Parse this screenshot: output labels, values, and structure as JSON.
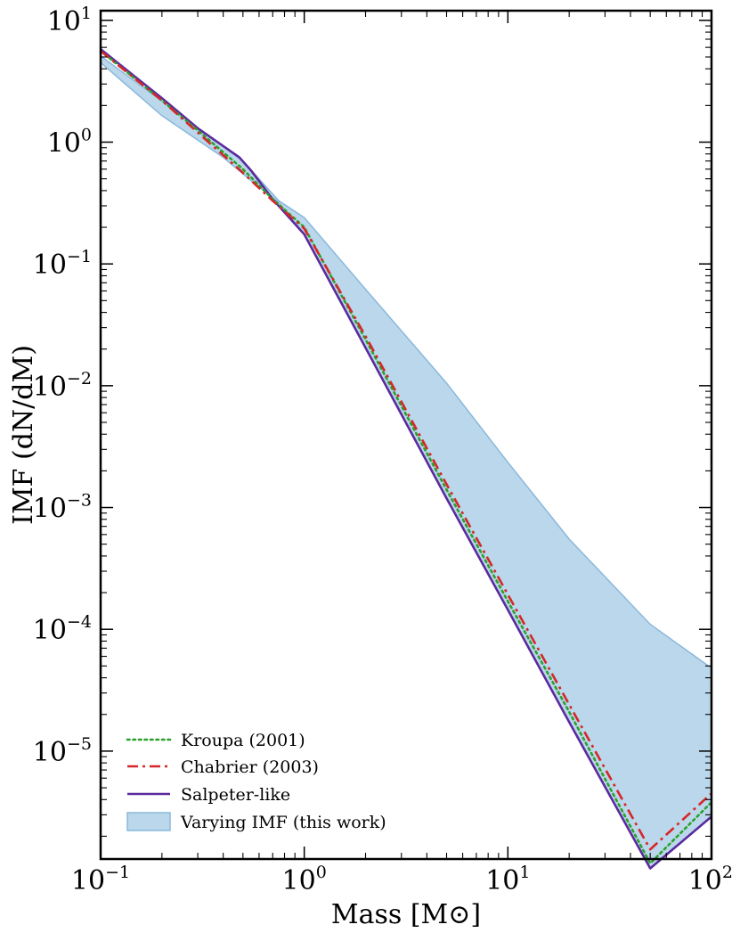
{
  "chart_data": {
    "type": "line",
    "xlabel": "Mass [M⊙]",
    "ylabel": "IMF (dN/dM)",
    "xscale": "log",
    "yscale": "log",
    "xlim": [
      0.1,
      100
    ],
    "ylim": [
      1.3e-06,
      12
    ],
    "x_ticks": [
      {
        "base": "10",
        "exp": "−1"
      },
      {
        "base": "10",
        "exp": "0"
      },
      {
        "base": "10",
        "exp": "1"
      },
      {
        "base": "10",
        "exp": "2"
      }
    ],
    "y_ticks": [
      {
        "base": "10",
        "exp": "1"
      },
      {
        "base": "10",
        "exp": "0"
      },
      {
        "base": "10",
        "exp": "−1"
      },
      {
        "base": "10",
        "exp": "−2"
      },
      {
        "base": "10",
        "exp": "−3"
      },
      {
        "base": "10",
        "exp": "−4"
      },
      {
        "base": "10",
        "exp": "−5"
      }
    ],
    "legend_position": "bottom-left",
    "series": [
      {
        "name": "Kroupa (2001)",
        "style": "dotted",
        "color": "#2ca02c",
        "x": [
          0.1,
          0.2,
          0.3,
          0.5,
          0.7,
          1,
          2,
          5,
          10,
          20,
          50,
          100
        ],
        "y": [
          5.6,
          2.2,
          1.25,
          0.6,
          0.34,
          0.2,
          0.024,
          0.0014,
          0.00017,
          2.1e-05,
          1.2e-06,
          3.8e-06
        ]
      },
      {
        "name": "Chabrier (2003)",
        "style": "dashdot",
        "color": "#d62728",
        "x": [
          0.1,
          0.2,
          0.3,
          0.5,
          0.7,
          1,
          2,
          5,
          10,
          20,
          50,
          100
        ],
        "y": [
          5.6,
          2.2,
          1.2,
          0.56,
          0.33,
          0.195,
          0.0255,
          0.00155,
          0.000193,
          2.41e-05,
          1.56e-06,
          4.5e-06
        ]
      },
      {
        "name": "Salpeter-like",
        "style": "solid",
        "color": "#5b2a9e",
        "x": [
          0.1,
          0.2,
          0.3,
          0.48,
          0.55,
          0.7,
          1,
          2,
          5,
          10,
          20,
          50,
          100
        ],
        "y": [
          5.8,
          2.3,
          1.3,
          0.75,
          0.58,
          0.34,
          0.175,
          0.0205,
          0.00119,
          0.000145,
          1.73e-05,
          1.09e-06,
          2.9e-06
        ]
      }
    ],
    "band": {
      "name": "Varying IMF (this work)",
      "color": "#9ec6e3",
      "edge_color": "#8ab8dc",
      "upper": {
        "x": [
          0.1,
          0.5,
          0.75,
          1,
          2,
          5,
          10,
          20,
          50,
          100
        ],
        "y": [
          5.1,
          0.7,
          0.33,
          0.24,
          0.062,
          0.0105,
          0.00235,
          0.00055,
          0.00011,
          4.8e-05
        ]
      },
      "lower": {
        "x": [
          0.1,
          0.2,
          0.4,
          0.55,
          0.75,
          1,
          2,
          5,
          10,
          20,
          50,
          100
        ],
        "y": [
          4.5,
          1.65,
          0.75,
          0.48,
          0.32,
          0.175,
          0.0205,
          0.00119,
          0.000145,
          1.73e-05,
          1.09e-06,
          2.9e-06
        ]
      }
    }
  }
}
